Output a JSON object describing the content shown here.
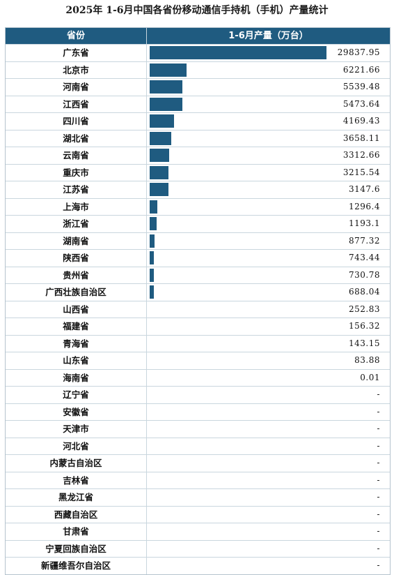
{
  "title": "2025年 1-6月中国各省份移动通信手持机（手机）产量统计",
  "header": {
    "province": "省份",
    "value": "1-6月产量（万台）"
  },
  "colors": {
    "bar": "#1f5b80",
    "header_bg": "#1f5b80"
  },
  "chart_data": {
    "type": "bar",
    "orientation": "horizontal",
    "title": "2025年 1-6月中国各省份移动通信手持机（手机）产量统计",
    "categories": [
      "广东省",
      "北京市",
      "河南省",
      "江西省",
      "四川省",
      "湖北省",
      "云南省",
      "重庆市",
      "江苏省",
      "上海市",
      "浙江省",
      "湖南省",
      "陕西省",
      "贵州省",
      "广西壮族自治区",
      "山西省",
      "福建省",
      "青海省",
      "山东省",
      "海南省",
      "辽宁省",
      "安徽省",
      "天津市",
      "河北省",
      "内蒙古自治区",
      "吉林省",
      "黑龙江省",
      "西藏自治区",
      "甘肃省",
      "宁夏回族自治区",
      "新疆维吾尔自治区"
    ],
    "values": [
      29837.95,
      6221.66,
      5539.48,
      5473.64,
      4169.43,
      3658.11,
      3312.66,
      3215.54,
      3147.6,
      1296.4,
      1193.1,
      877.32,
      743.44,
      730.78,
      688.04,
      252.83,
      156.32,
      143.15,
      83.88,
      0.01,
      null,
      null,
      null,
      null,
      null,
      null,
      null,
      null,
      null,
      null,
      null
    ],
    "labels": [
      "29837.95",
      "6221.66",
      "5539.48",
      "5473.64",
      "4169.43",
      "3658.11",
      "3312.66",
      "3215.54",
      "3147.6",
      "1296.4",
      "1193.1",
      "877.32",
      "743.44",
      "730.78",
      "688.04",
      "252.83",
      "156.32",
      "143.15",
      "83.88",
      "0.01",
      "-",
      "-",
      "-",
      "-",
      "-",
      "-",
      "-",
      "-",
      "-",
      "-",
      "-"
    ],
    "xlim": [
      0,
      29837.95
    ]
  }
}
